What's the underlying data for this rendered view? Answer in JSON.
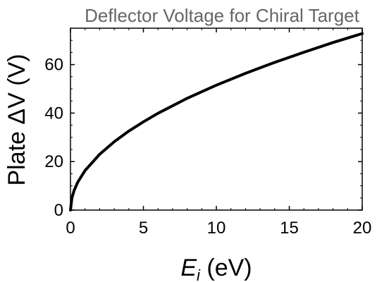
{
  "chart_data": {
    "type": "line",
    "title": "Deflector Voltage for Chiral Target",
    "xlabel": {
      "symbol": "E",
      "subscript": "i",
      "unit": " (eV)"
    },
    "ylabel": "Plate ΔV (V)",
    "xlim": [
      0,
      20
    ],
    "ylim": [
      0,
      75
    ],
    "xticks": [
      0,
      5,
      10,
      15,
      20
    ],
    "yticks": [
      0,
      20,
      40,
      60
    ],
    "series": [
      {
        "x": [
          0,
          0.1,
          0.25,
          0.5,
          1,
          2,
          3,
          4,
          5,
          6,
          8,
          10,
          12,
          14,
          16,
          18,
          20
        ],
        "y": [
          0,
          5.1,
          8.1,
          11.5,
          16.3,
          23.0,
          28.2,
          32.6,
          36.4,
          39.9,
          46.1,
          51.5,
          56.4,
          60.9,
          65.1,
          69.1,
          72.8
        ]
      }
    ],
    "colors": {
      "line": "#000000",
      "title": "#666666"
    },
    "grid": false
  }
}
